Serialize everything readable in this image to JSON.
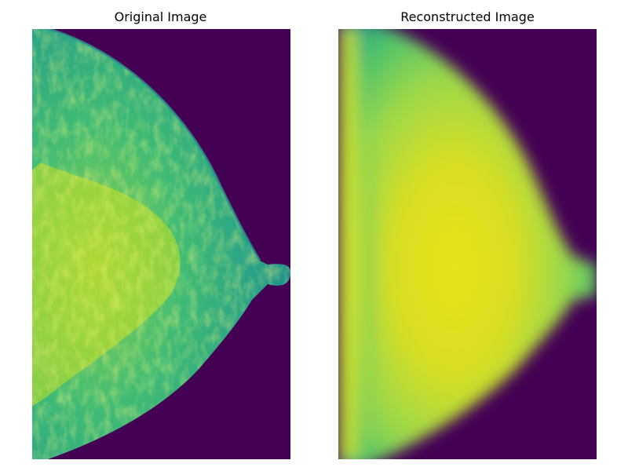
{
  "panels": [
    {
      "title": "Original Image"
    },
    {
      "title": "Reconstructed Image"
    }
  ],
  "colors": {
    "background": "#440154",
    "tissue_edge": "#21918c",
    "tissue_mid": "#35b779",
    "dense": "#c8e020",
    "bright": "#fde725"
  }
}
